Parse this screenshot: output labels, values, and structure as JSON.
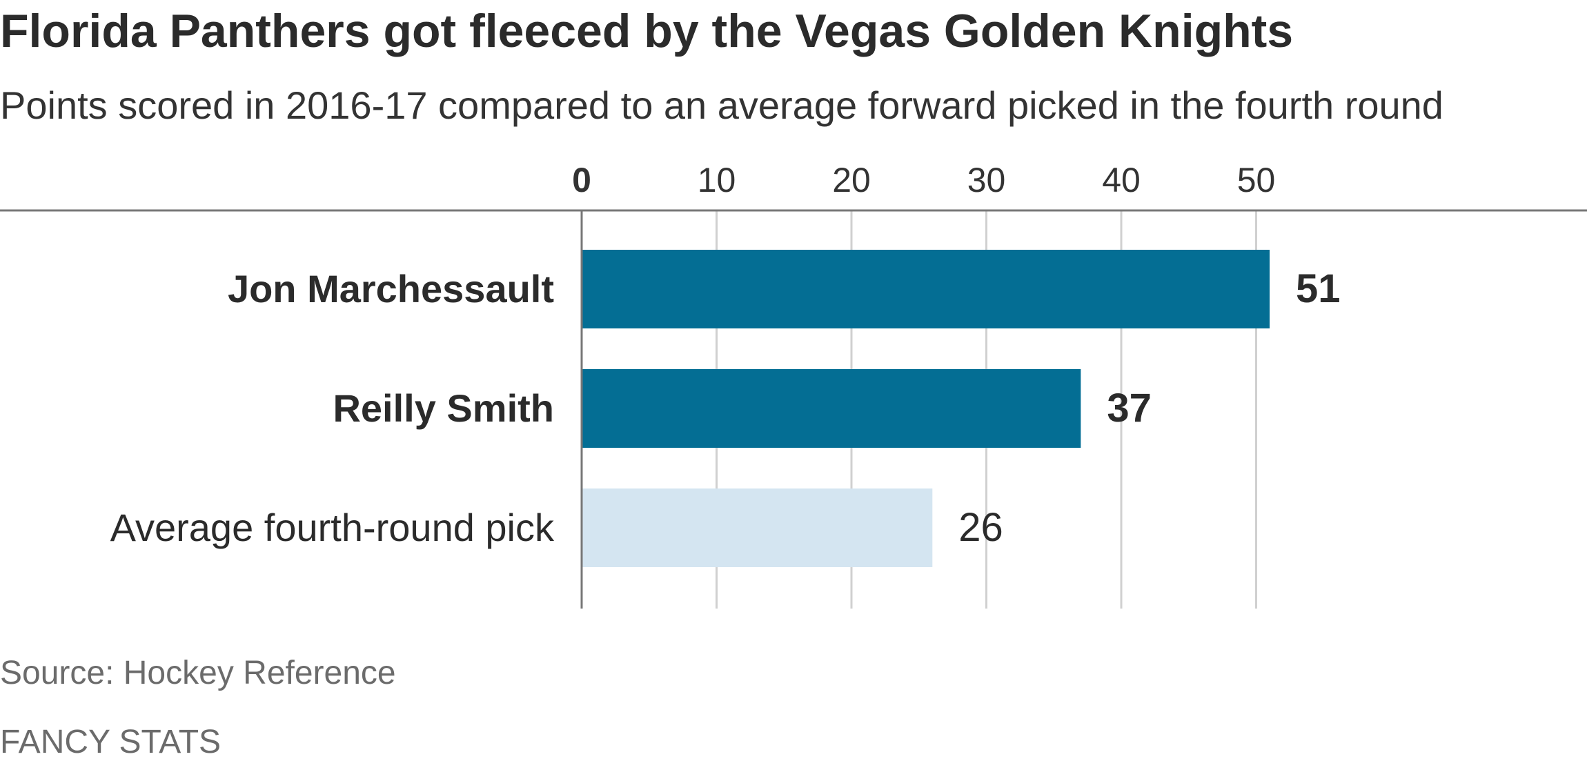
{
  "title": "Florida Panthers got fleeced by the Vegas Golden Knights",
  "subtitle": "Points scored in 2016-17 compared to an average forward picked in the fourth round",
  "source": "Source: Hockey Reference",
  "credit": "FANCY STATS",
  "colors": {
    "highlight": "#046e94",
    "muted": "#d4e5f1",
    "grid": "#d0d0d0",
    "axis": "#777777"
  },
  "chart_data": {
    "type": "bar",
    "orientation": "horizontal",
    "categories": [
      "Jon Marchessault",
      "Reilly Smith",
      "Average fourth-round pick"
    ],
    "values": [
      51,
      37,
      26
    ],
    "value_labels": [
      "51",
      "37",
      "26"
    ],
    "highlighted": [
      true,
      true,
      false
    ],
    "xticks": [
      0,
      10,
      20,
      30,
      40,
      50
    ],
    "xtick_labels": [
      "0",
      "10",
      "20",
      "30",
      "40",
      "50"
    ],
    "xlim": [
      0,
      60
    ],
    "xaxis_position": "top",
    "grid": true
  }
}
